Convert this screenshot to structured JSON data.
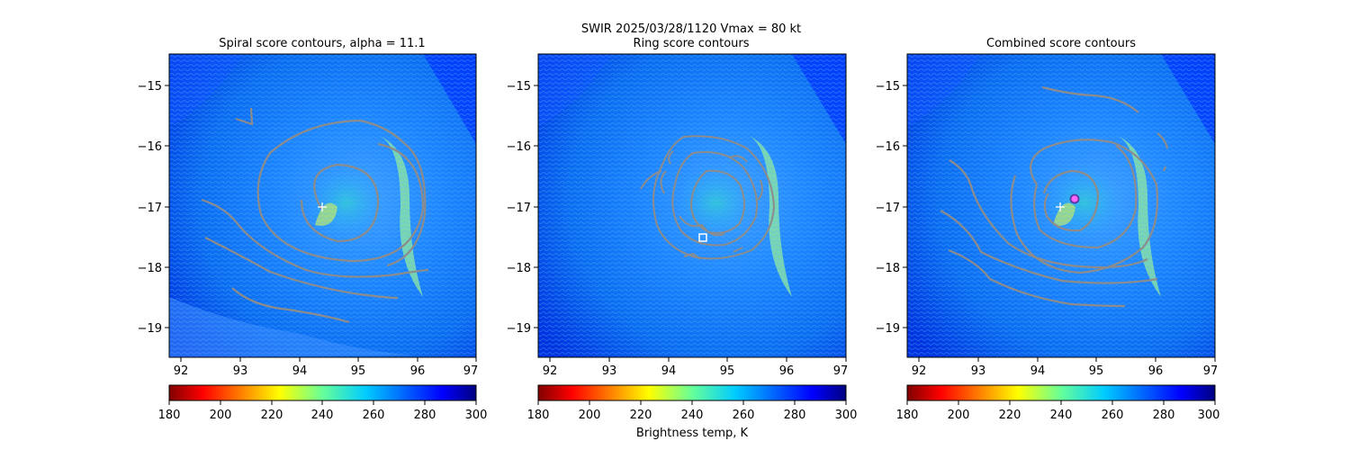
{
  "figure": {
    "suptitle": "SWIR  2025/03/28/1120    Vmax = 80 kt"
  },
  "chart_data": [
    {
      "type": "heatmap",
      "title": "Spiral score contours, alpha = 11.1",
      "x_ticks": [
        "92",
        "93",
        "94",
        "95",
        "96",
        "97"
      ],
      "y_ticks": [
        "−15",
        "−16",
        "−17",
        "−18",
        "−19"
      ],
      "xlim": [
        91.8,
        97.0
      ],
      "ylim": [
        -19.5,
        -14.5
      ],
      "contour_color": "#808080",
      "center_marker": {
        "type": "plus",
        "lon": 94.35,
        "lat": -16.97,
        "color": "#ffffff"
      },
      "colorbar": {
        "ticks": [
          "180",
          "200",
          "220",
          "240",
          "260",
          "280",
          "300"
        ],
        "range": [
          180,
          300
        ],
        "label": ""
      }
    },
    {
      "type": "heatmap",
      "title": "Ring score contours",
      "x_ticks": [
        "92",
        "93",
        "94",
        "95",
        "96",
        "97"
      ],
      "y_ticks": [
        "−15",
        "−16",
        "−17",
        "−18",
        "−19"
      ],
      "xlim": [
        91.8,
        97.0
      ],
      "ylim": [
        -19.5,
        -14.5
      ],
      "contour_color": "#808080",
      "center_marker": {
        "type": "square",
        "lon": 94.57,
        "lat": -17.52,
        "color": "#ffffff"
      },
      "colorbar": {
        "ticks": [
          "180",
          "200",
          "220",
          "240",
          "260",
          "280",
          "300"
        ],
        "range": [
          180,
          300
        ],
        "label": "Brightness temp, K"
      }
    },
    {
      "type": "heatmap",
      "title": "Combined score contours",
      "x_ticks": [
        "92",
        "93",
        "94",
        "95",
        "96",
        "97"
      ],
      "y_ticks": [
        "−15",
        "−16",
        "−17",
        "−18",
        "−19"
      ],
      "xlim": [
        91.8,
        97.0
      ],
      "ylim": [
        -19.5,
        -14.5
      ],
      "contour_color": "#808080",
      "center_marker": {
        "type": "circle",
        "lon": 94.6,
        "lat": -16.88,
        "color": "#b23cc8"
      },
      "secondary_marker": {
        "type": "plus",
        "lon": 94.37,
        "lat": -17.0,
        "color": "#ffffff"
      },
      "colorbar": {
        "ticks": [
          "180",
          "200",
          "220",
          "240",
          "260",
          "280",
          "300"
        ],
        "range": [
          180,
          300
        ],
        "label": ""
      }
    }
  ],
  "colormap": {
    "name": "jet_r",
    "stops": [
      "#800000",
      "#ff0000",
      "#ff8000",
      "#ffff00",
      "#80ff80",
      "#00ffff",
      "#0080ff",
      "#0000ff",
      "#000080"
    ]
  }
}
